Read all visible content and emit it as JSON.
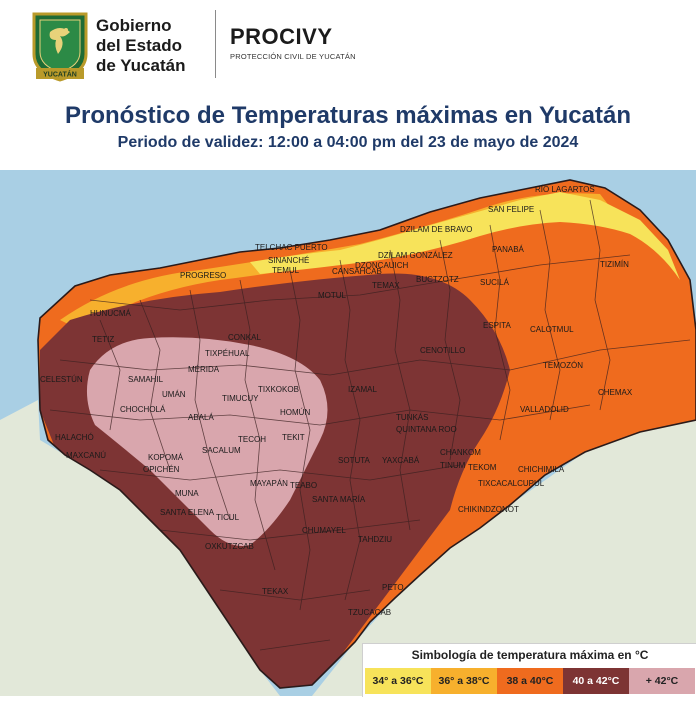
{
  "header": {
    "government_lines": [
      "Gobierno",
      "del Estado",
      "de Yucatán"
    ],
    "seal_text": "YUCATÁN",
    "agency_name": "PROCIVY",
    "agency_subtitle": "PROTECCIÓN CIVIL DE YUCATÁN"
  },
  "title": "Pronóstico de Temperaturas máximas en Yucatán",
  "subtitle": "Periodo de validez: 12:00 a 04:00 pm del 23 de mayo de 2024",
  "legend": {
    "title": "Simbología de temperatura máxima en °C",
    "items": [
      {
        "label": "34° a 36°C",
        "color": "#f7e35a"
      },
      {
        "label": "36° a 38°C",
        "color": "#f7b02d"
      },
      {
        "label": "38 a 40°C",
        "color": "#ef6b1e"
      },
      {
        "label": "40 a 42°C",
        "color": "#7d3434"
      },
      {
        "label": "+ 42°C",
        "color": "#d9a6ad"
      }
    ]
  },
  "colors": {
    "sea": "#a9cfe4",
    "land_outside": "#e2e8d9",
    "title_blue": "#1f3a68",
    "zone_34_36": "#f7e35a",
    "zone_36_38": "#f7b02d",
    "zone_38_40": "#ef6b1e",
    "zone_40_42": "#7d3434",
    "zone_42": "#d9a6ad",
    "border": "#3a2020"
  },
  "places": [
    "RÍO LAGARTOS",
    "SAN FELIPE",
    "DZILAM DE BRAVO",
    "DZILAM GONZÁLEZ",
    "TELCHAC PUERTO",
    "SINANCHÉ",
    "TEMAX",
    "BUCTZOTZ",
    "PANABÁ",
    "TIZIMÍN",
    "SUCILÁ",
    "ESPITA",
    "CALOTMUL",
    "TEMOZÓN",
    "CHEMAX",
    "VALLADOLID",
    "CHICHIMILÁ",
    "TEKOM",
    "CHIKINDZONOT",
    "TIXCACALCUPUL",
    "PROGRESO",
    "HUNUCMÁ",
    "MÉRIDA",
    "UMÁN",
    "TETIZ",
    "CELESTÚN",
    "SAMAHIL",
    "CHOCHOLÁ",
    "MAXCANÚ",
    "HALACHÓ",
    "KOPOMÁ",
    "OPICHÉN",
    "ABALÁ",
    "MUNA",
    "SACALUM",
    "TICUL",
    "SANTA ELENA",
    "OXKUTZCAB",
    "TEKAX",
    "TZUCACAB",
    "PETO",
    "TAHDZIU",
    "CHUMAYEL",
    "SANTA MARÍA",
    "TEABO",
    "MAYAPÁN",
    "TEKIT",
    "HOMÚN",
    "TECOH",
    "SOTUTA",
    "YAXCABÁ",
    "IZAMAL",
    "TUNKÁS",
    "QUINTANA ROO",
    "CENOTILLO",
    "TINUM",
    "CHANKOM",
    "TIXKOKOB",
    "MOTUL",
    "CONKAL",
    "TIXPÉHUAL",
    "TIMUCUY",
    "TEMUL",
    "CANSAHCAB",
    "DZONCAUICH"
  ]
}
